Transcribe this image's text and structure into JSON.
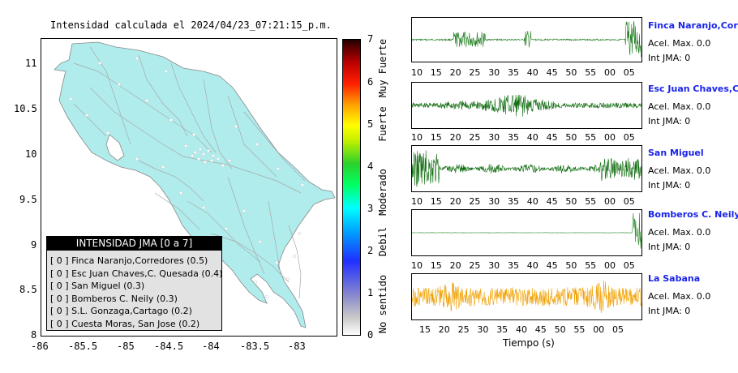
{
  "map": {
    "title": "Intensidad calculada el 2024/04/23_07:21:15_p.m.",
    "lat_labels": [
      "11",
      "10.5",
      "10",
      "9.5",
      "9",
      "8.5",
      "8"
    ],
    "lon_labels": [
      "-86",
      "-85.5",
      "-85",
      "-84.5",
      "-84",
      "-83.5",
      "-83"
    ],
    "fill_color": "#b0ecec",
    "legend": {
      "title": "INTENSIDAD JMA [0 a 7]",
      "rows": [
        "[ 0 ]  Finca Naranjo,Corredores (0.5)",
        "[ 0 ]  Esc Juan Chaves,C. Quesada (0.4)",
        "[ 0 ]  San Miguel (0.3)",
        "[ 0 ]  Bomberos C. Neily (0.3)",
        "[ 0 ]  S.L. Gonzaga,Cartago (0.2)",
        "[ 0 ]  Cuesta Moras, San Jose (0.2)"
      ]
    }
  },
  "colorbar": {
    "ticks": [
      "7",
      "6",
      "5",
      "4",
      "3",
      "2",
      "1",
      "0"
    ],
    "categories": [
      "Muy Fuerte",
      "Fuerte",
      "Moderado",
      "Debil",
      "No sentido"
    ]
  },
  "traces": {
    "tick_labels": [
      "10",
      "15",
      "20",
      "25",
      "30",
      "35",
      "40",
      "45",
      "50",
      "55",
      "00",
      "05"
    ],
    "x_title": "Tiempo (s)",
    "stations": [
      {
        "name": "Finca Naranjo,Corredores",
        "acel": "Acel. Max. 0.0",
        "jma": "Int JMA: 0",
        "color": "#1a7a1a"
      },
      {
        "name": "Esc Juan Chaves,C. Quesada",
        "acel": "Acel. Max. 0.0",
        "jma": "Int JMA: 0",
        "color": "#0e6b0e"
      },
      {
        "name": "San Miguel",
        "acel": "Acel. Max. 0.0",
        "jma": "Int JMA: 0",
        "color": "#0e6b0e"
      },
      {
        "name": "Bomberos C. Neily",
        "acel": "Acel. Max. 0.0",
        "jma": "Int JMA: 0",
        "color": "#2a8a2a"
      },
      {
        "name": "La Sabana",
        "acel": "Acel. Max. 0.0",
        "jma": "Int JMA: 0",
        "color": "#f0a000"
      }
    ]
  }
}
